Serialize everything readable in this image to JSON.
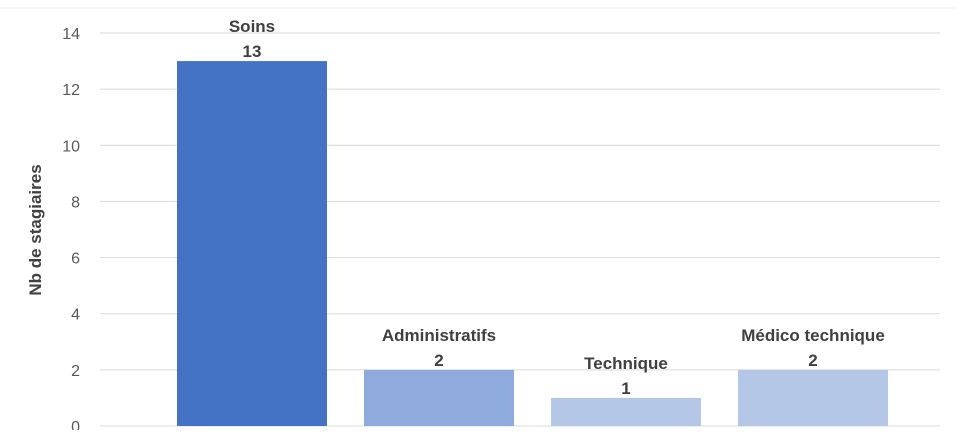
{
  "chart_data": {
    "type": "bar",
    "title": "",
    "xlabel": "",
    "ylabel": "Nb de stagiaires",
    "categories": [
      "Soins",
      "Administratifs",
      "Technique",
      "Médico technique"
    ],
    "values": [
      13,
      2,
      1,
      2
    ],
    "ylim": [
      0,
      14
    ],
    "yticks": [
      0,
      2,
      4,
      6,
      8,
      10,
      12,
      14
    ],
    "grid": true,
    "legend": "none",
    "colors": [
      "#4472C4",
      "#8FAADC",
      "#B4C7E7",
      "#B4C7E7"
    ],
    "data_labels_show": "category-and-value"
  }
}
